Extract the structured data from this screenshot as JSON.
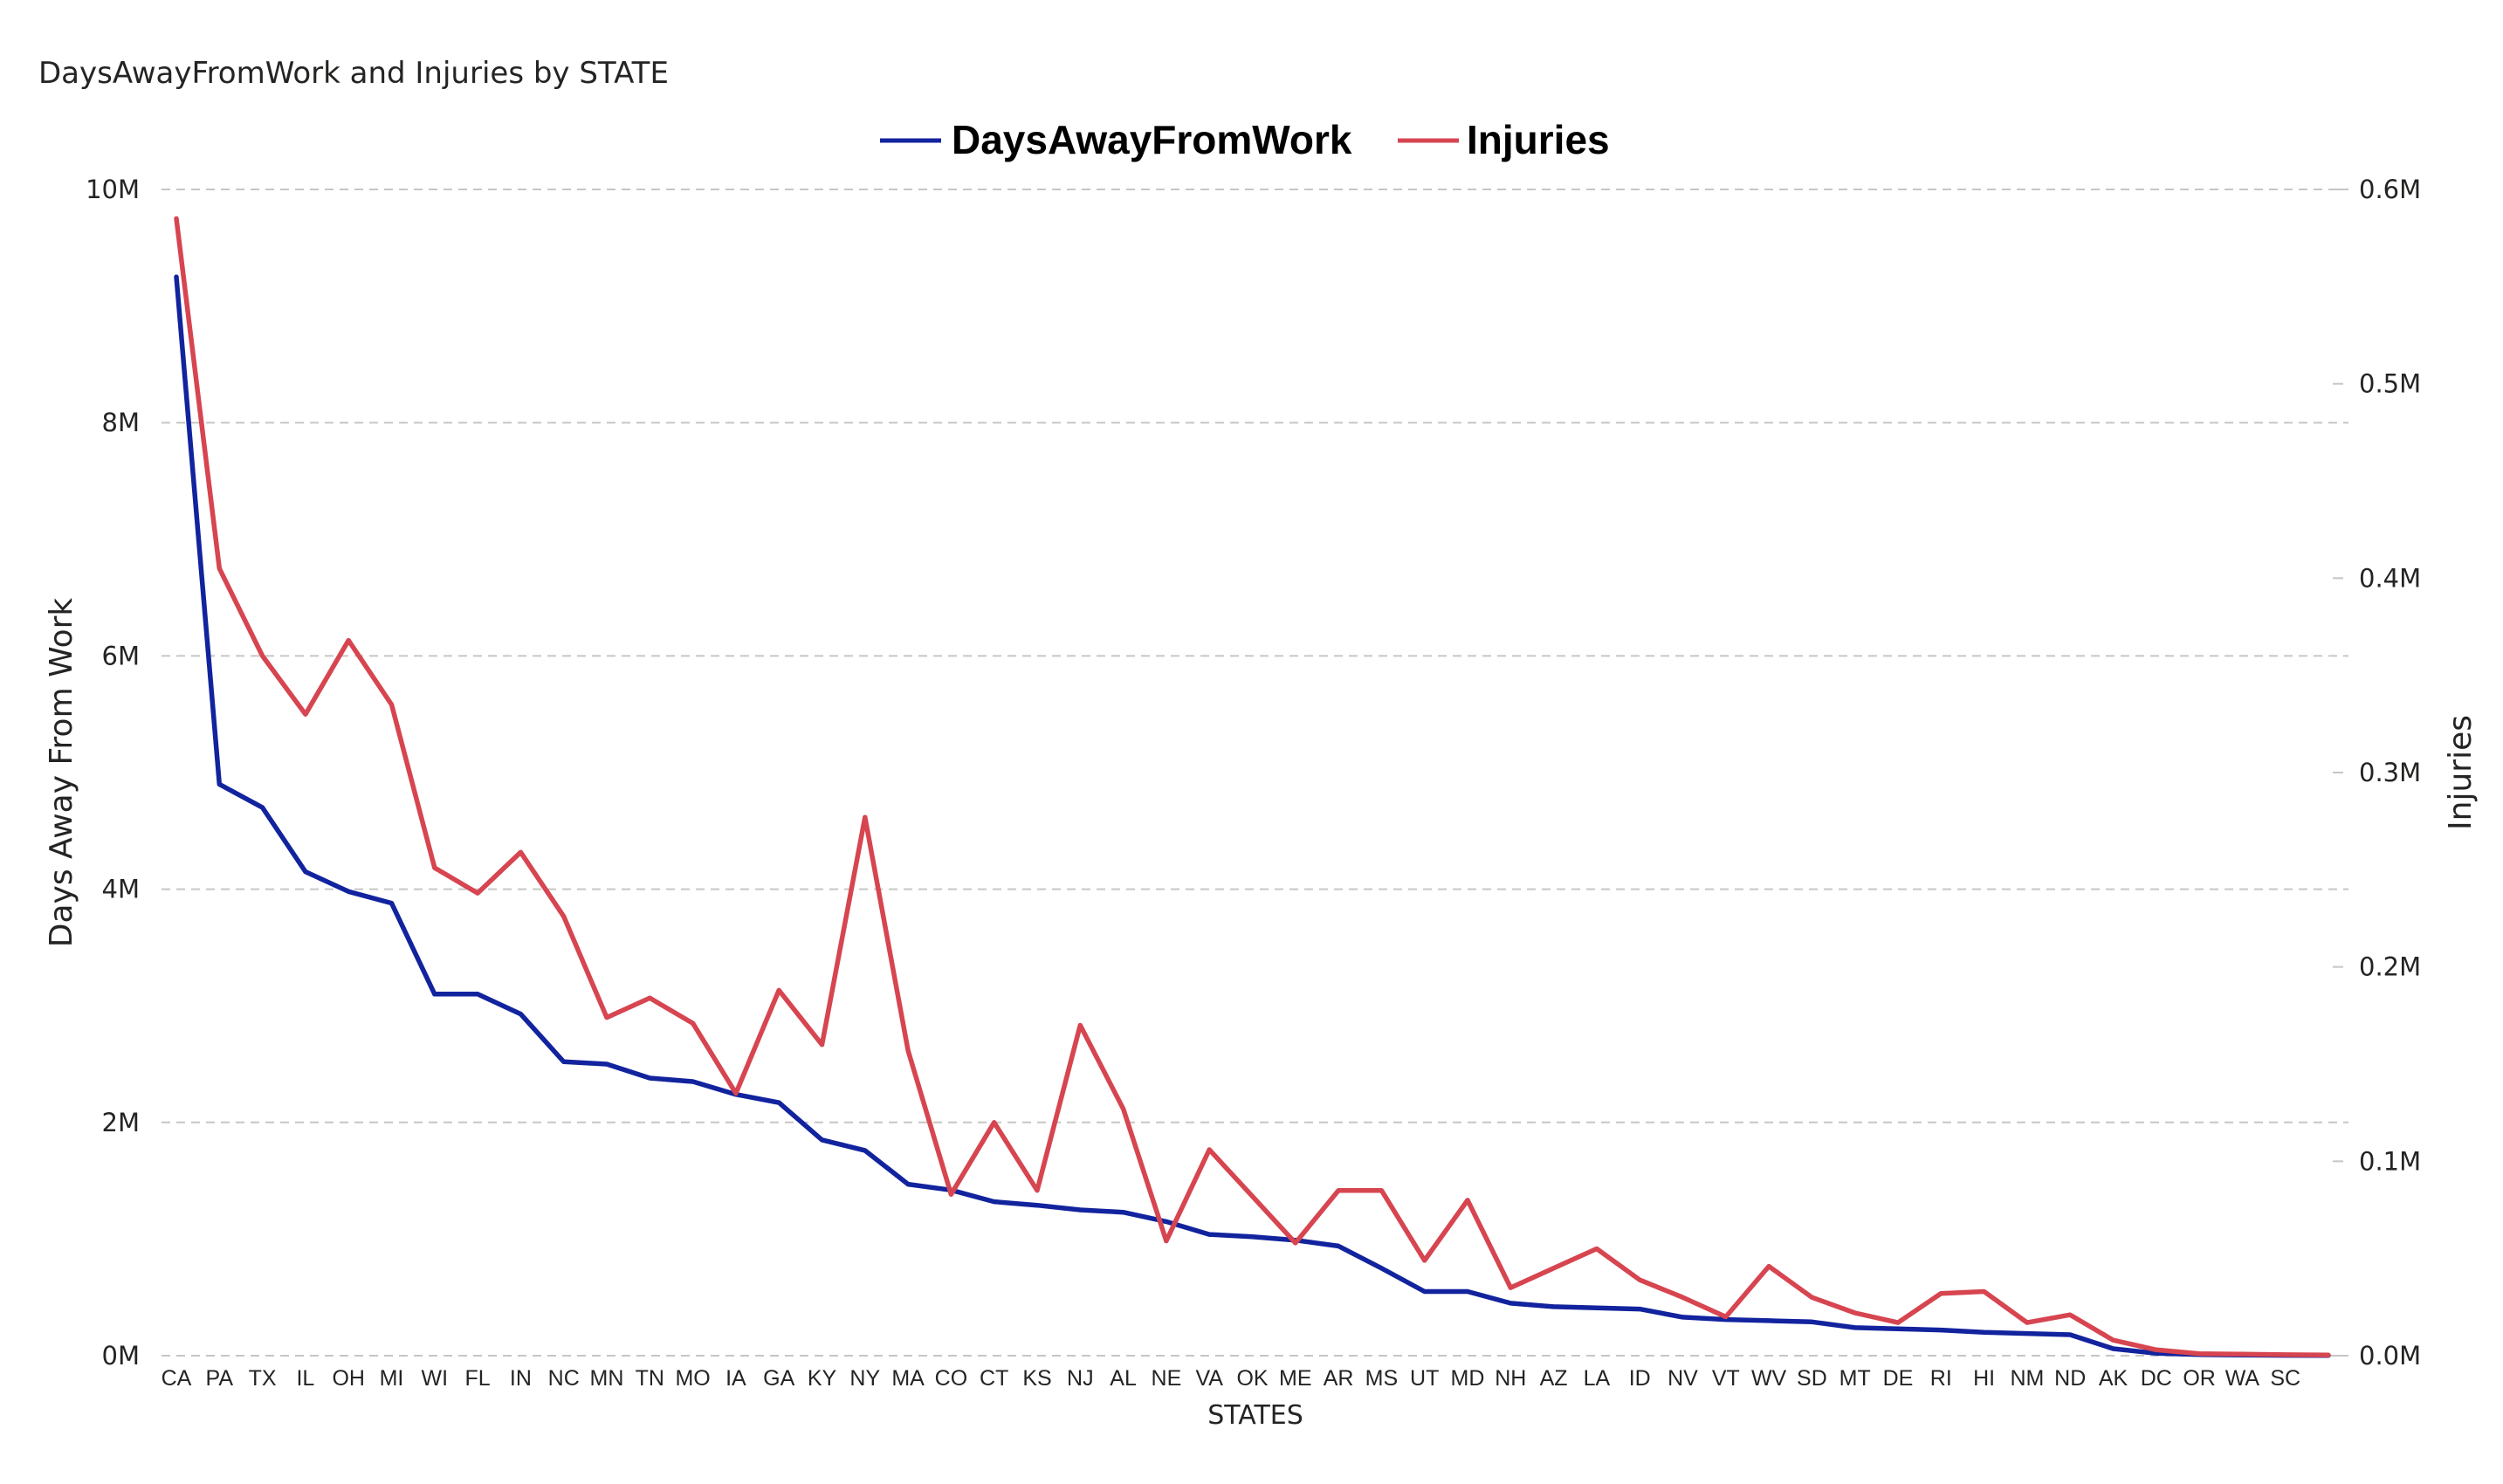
{
  "chart_data": {
    "type": "line",
    "title": "DaysAwayFromWork and Injuries by STATE",
    "xlabel": "STATES",
    "ylabel": "Days Away From Work",
    "y2label": "Injuries",
    "legend_position": "top-center",
    "grid": true,
    "ylim": [
      0,
      10000000
    ],
    "y2lim": [
      0,
      600000
    ],
    "y_ticks": [
      "0M",
      "2M",
      "4M",
      "6M",
      "8M",
      "10M"
    ],
    "y2_ticks": [
      "0.0M",
      "0.1M",
      "0.2M",
      "0.3M",
      "0.4M",
      "0.5M",
      "0.6M"
    ],
    "categories": [
      "CA",
      "PA",
      "TX",
      "IL",
      "OH",
      "MI",
      "WI",
      "FL",
      "IN",
      "NC",
      "MN",
      "TN",
      "MO",
      "IA",
      "GA",
      "KY",
      "NY",
      "MA",
      "CO",
      "CT",
      "KS",
      "NJ",
      "AL",
      "NE",
      "VA",
      "OK",
      "ME",
      "AR",
      "MS",
      "UT",
      "MD",
      "NH",
      "AZ",
      "LA",
      "ID",
      "NV",
      "VT",
      "WV",
      "SD",
      "MT",
      "DE",
      "RI",
      "HI",
      "NM",
      "ND",
      "AK",
      "DC",
      "OR",
      "WA",
      "SC",
      ""
    ],
    "x_tick_labels": [
      "CA",
      "PA",
      "TX",
      "IL",
      "OH",
      "MI",
      "WI",
      "FL",
      "IN",
      "NC",
      "MN",
      "TN",
      "MO",
      "IA",
      "GA",
      "KY",
      "NY",
      "MA",
      "CO",
      "CT",
      "KS",
      "NJ",
      "AL",
      "NE",
      "VA",
      "OK",
      "ME",
      "AR",
      "MS",
      "UT",
      "MD",
      "NH",
      "AZ",
      "LA",
      "ID",
      "NV",
      "VT",
      "WV",
      "SD",
      "MT",
      "DE",
      "RI",
      "HI",
      "NM",
      "ND",
      "AK",
      "DC",
      "OR",
      "WA",
      "SC"
    ],
    "series": [
      {
        "name": "DaysAwayFromWork",
        "axis": "left",
        "color": "#12239E",
        "values": [
          9250000,
          4900000,
          4700000,
          4150000,
          3980000,
          3880000,
          3100000,
          3100000,
          2930000,
          2520000,
          2500000,
          2380000,
          2350000,
          2240000,
          2170000,
          1850000,
          1760000,
          1470000,
          1420000,
          1320000,
          1290000,
          1250000,
          1230000,
          1150000,
          1040000,
          1020000,
          990000,
          940000,
          750000,
          550000,
          550000,
          450000,
          420000,
          410000,
          400000,
          330000,
          310000,
          300000,
          290000,
          240000,
          230000,
          220000,
          200000,
          190000,
          180000,
          60000,
          20000,
          10000,
          5000,
          3000,
          2000
        ]
      },
      {
        "name": "Injuries",
        "axis": "right",
        "color": "#D64550",
        "values": [
          585000,
          405000,
          360000,
          330000,
          368000,
          335000,
          251000,
          238000,
          259000,
          226000,
          174000,
          184000,
          171000,
          135000,
          188000,
          160000,
          277000,
          157000,
          83000,
          120000,
          85000,
          170000,
          127000,
          59000,
          106000,
          82000,
          58000,
          85000,
          85000,
          49000,
          80000,
          35000,
          45000,
          55000,
          39000,
          30000,
          20000,
          46000,
          30000,
          22000,
          17000,
          32000,
          33000,
          17000,
          21000,
          8000,
          3000,
          1000,
          800,
          500,
          300
        ]
      }
    ]
  }
}
